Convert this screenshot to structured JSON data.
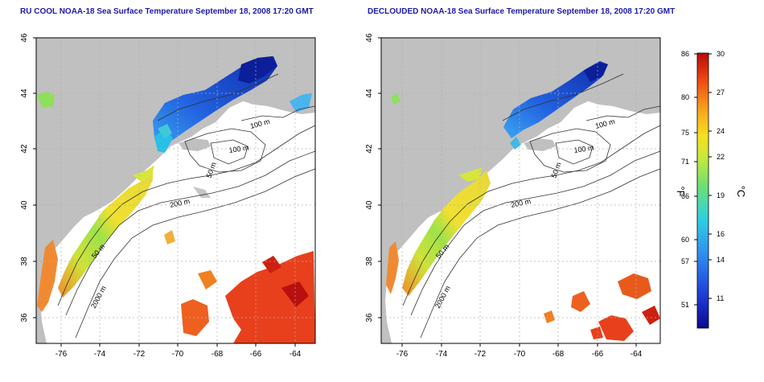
{
  "panels": [
    {
      "title": "RU COOL NOAA-18 Sea Surface Temperature September 18, 2008 17:20 GMT",
      "contour_labels": [
        "100 m",
        "100 m",
        "50 m",
        "200 m",
        "50 m",
        "2000 m"
      ]
    },
    {
      "title": "DECLOUDED NOAA-18 Sea Surface Temperature September 18, 2008 17:20 GMT",
      "contour_labels": [
        "100 m",
        "100 m",
        "50 m",
        "200 m",
        "50 m",
        "2000 m"
      ]
    }
  ],
  "axes": {
    "lon_ticks": [
      "-76",
      "-74",
      "-72",
      "-70",
      "-68",
      "-66",
      "-64"
    ],
    "lat_ticks": [
      "36",
      "38",
      "40",
      "42",
      "44",
      "46"
    ]
  },
  "colorbar": {
    "unit_f": "°F",
    "unit_c": "°C",
    "f_ticks": [
      "86",
      "80",
      "75",
      "71",
      "66",
      "60",
      "57",
      "51"
    ],
    "c_ticks": [
      "30",
      "27",
      "24",
      "22",
      "19",
      "16",
      "14",
      "11"
    ]
  },
  "colors": {
    "title": "#1a1aa8",
    "land": "#c0c0c0",
    "ocean": "#ffffff",
    "grid": "#b0b0b0",
    "contour": "#333333"
  }
}
